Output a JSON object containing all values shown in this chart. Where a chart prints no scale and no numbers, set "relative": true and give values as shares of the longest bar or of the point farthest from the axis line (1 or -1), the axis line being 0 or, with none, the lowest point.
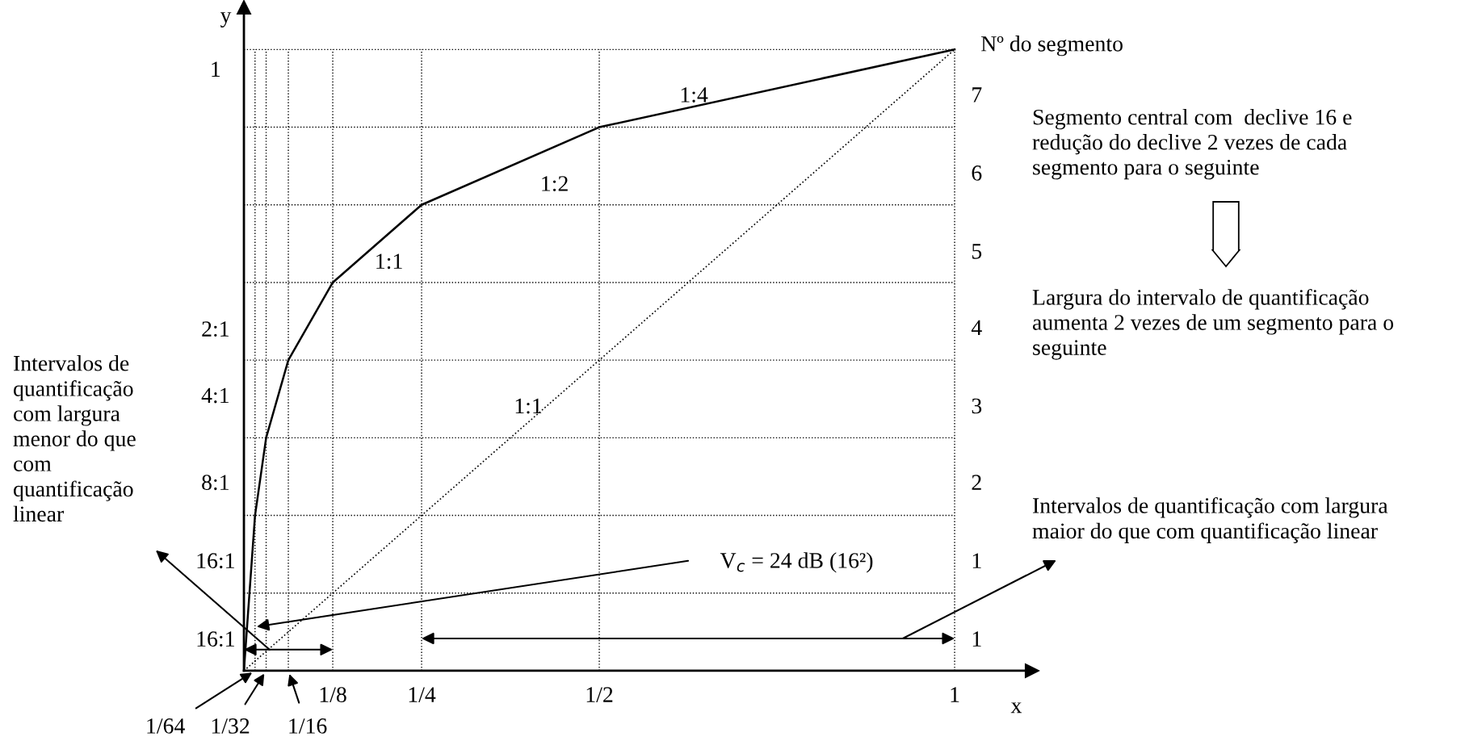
{
  "chart_data": {
    "type": "line",
    "xlabel": "x",
    "ylabel": "y",
    "relative": true,
    "x": [
      0,
      0.0078125,
      0.015625,
      0.03125,
      0.0625,
      0.125,
      0.25,
      0.5,
      1
    ],
    "series": [
      {
        "color": "#000000",
        "values": [
          0,
          0.125,
          0.25,
          0.375,
          0.5,
          0.625,
          0.75,
          0.875,
          1
        ],
        "line_style": "solid"
      },
      {
        "color": "#000000",
        "x": [
          0,
          1
        ],
        "values": [
          0,
          1
        ],
        "line_style": "dotted"
      }
    ],
    "xlim": [
      0,
      1.109
    ],
    "xticks": [
      {
        "value": 0.015625,
        "label": null
      },
      {
        "value": 0.03125,
        "label": null
      },
      {
        "value": 0.0625,
        "label": null
      },
      {
        "value": 0.125,
        "label": "1/8"
      },
      {
        "value": 0.25,
        "label": "1/4"
      },
      {
        "value": 0.5,
        "label": "1/2"
      },
      1
    ],
    "grid": true,
    "annotations": [
      "Intervalos de\nquantificação\ncom largura\nmenor do que\ncom\nquantificação\nlinear",
      "Segmento central com  declive 16 e\nredução do declive 2 vezes de cada\nsegmento para o seguinte",
      "Largura do intervalo de quantificação\naumenta 2 vezes de um segmento para o\nseguinte",
      "Intervalos de quantificação com largura\nmaior do que com quantificação linear",
      "1/64",
      "1/32",
      "1/16",
      "2:1",
      "4:1",
      "8:1",
      "16:1",
      "16:1",
      "Nº do segmento",
      "7",
      "6",
      "5",
      "4",
      "3",
      "2",
      "1",
      "1",
      "1:4",
      "1:2",
      "1:1",
      "1:1",
      "V$_{c}$ = 24 dB (16²)",
      "1"
    ]
  }
}
